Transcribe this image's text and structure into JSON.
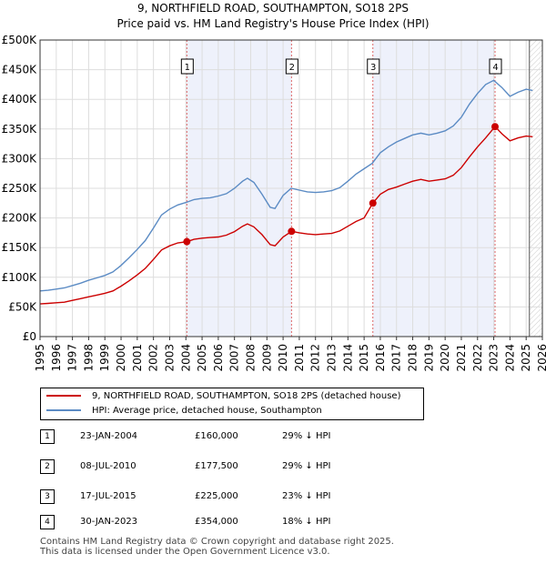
{
  "chart_data": {
    "type": "line",
    "title": "9, NORTHFIELD ROAD, SOUTHAMPTON, SO18 2PS",
    "subtitle": "Price paid vs. HM Land Registry's House Price Index (HPI)",
    "xlim": [
      1995,
      2026
    ],
    "ylim": [
      0,
      500000
    ],
    "x_ticks": [
      1995,
      1996,
      1997,
      1998,
      1999,
      2000,
      2001,
      2002,
      2003,
      2004,
      2005,
      2006,
      2007,
      2008,
      2009,
      2010,
      2011,
      2012,
      2013,
      2014,
      2015,
      2016,
      2017,
      2018,
      2019,
      2020,
      2021,
      2022,
      2023,
      2024,
      2025,
      2026
    ],
    "y_ticks": [
      {
        "value": 0,
        "label": "£0"
      },
      {
        "value": 50000,
        "label": "£50K"
      },
      {
        "value": 100000,
        "label": "£100K"
      },
      {
        "value": 150000,
        "label": "£150K"
      },
      {
        "value": 200000,
        "label": "£200K"
      },
      {
        "value": 250000,
        "label": "£250K"
      },
      {
        "value": 300000,
        "label": "£300K"
      },
      {
        "value": 350000,
        "label": "£350K"
      },
      {
        "value": 400000,
        "label": "£400K"
      },
      {
        "value": 450000,
        "label": "£450K"
      },
      {
        "value": 500000,
        "label": "£500K"
      }
    ],
    "grid": true,
    "forecast_from": 2025.2,
    "shaded_ranges": [
      [
        2004.06,
        2010.52
      ],
      [
        2015.54,
        2023.08
      ]
    ],
    "series": [
      {
        "name": "9, NORTHFIELD ROAD, SOUTHAMPTON, SO18 2PS (detached house)",
        "color": "#cc0000",
        "points": [
          [
            1995,
            55000
          ],
          [
            1995.5,
            56000
          ],
          [
            1996,
            57000
          ],
          [
            1996.5,
            58000
          ],
          [
            1997,
            61000
          ],
          [
            1997.5,
            64000
          ],
          [
            1998,
            67000
          ],
          [
            1998.5,
            70000
          ],
          [
            1999,
            73000
          ],
          [
            1999.5,
            77000
          ],
          [
            2000,
            85000
          ],
          [
            2000.5,
            94000
          ],
          [
            2001,
            104000
          ],
          [
            2001.5,
            115000
          ],
          [
            2002,
            130000
          ],
          [
            2002.5,
            146000
          ],
          [
            2003,
            153000
          ],
          [
            2003.5,
            158000
          ],
          [
            2004.06,
            160000
          ],
          [
            2004.5,
            164000
          ],
          [
            2005,
            166000
          ],
          [
            2005.5,
            167000
          ],
          [
            2006,
            168000
          ],
          [
            2006.5,
            171000
          ],
          [
            2007,
            177000
          ],
          [
            2007.5,
            186000
          ],
          [
            2007.8,
            190000
          ],
          [
            2008.2,
            185000
          ],
          [
            2008.7,
            172000
          ],
          [
            2009.2,
            155000
          ],
          [
            2009.5,
            153000
          ],
          [
            2010,
            168000
          ],
          [
            2010.52,
            177500
          ],
          [
            2011,
            175000
          ],
          [
            2011.5,
            173000
          ],
          [
            2012,
            172000
          ],
          [
            2012.5,
            173000
          ],
          [
            2013,
            174000
          ],
          [
            2013.5,
            178000
          ],
          [
            2014,
            186000
          ],
          [
            2014.5,
            194000
          ],
          [
            2015,
            200000
          ],
          [
            2015.54,
            225000
          ],
          [
            2016,
            240000
          ],
          [
            2016.5,
            248000
          ],
          [
            2017,
            252000
          ],
          [
            2017.5,
            257000
          ],
          [
            2018,
            262000
          ],
          [
            2018.5,
            265000
          ],
          [
            2019,
            262000
          ],
          [
            2019.5,
            264000
          ],
          [
            2020,
            266000
          ],
          [
            2020.5,
            272000
          ],
          [
            2021,
            285000
          ],
          [
            2021.5,
            303000
          ],
          [
            2022,
            320000
          ],
          [
            2022.5,
            335000
          ],
          [
            2023.08,
            354000
          ],
          [
            2023.5,
            342000
          ],
          [
            2024,
            330000
          ],
          [
            2024.5,
            335000
          ],
          [
            2025,
            338000
          ],
          [
            2025.4,
            337000
          ]
        ]
      },
      {
        "name": "HPI: Average price, detached house, Southampton",
        "color": "#5b8bc4",
        "points": [
          [
            1995,
            77000
          ],
          [
            1995.5,
            78000
          ],
          [
            1996,
            80000
          ],
          [
            1996.5,
            82000
          ],
          [
            1997,
            86000
          ],
          [
            1997.5,
            90000
          ],
          [
            1998,
            95000
          ],
          [
            1998.5,
            99000
          ],
          [
            1999,
            103000
          ],
          [
            1999.5,
            109000
          ],
          [
            2000,
            120000
          ],
          [
            2000.5,
            133000
          ],
          [
            2001,
            147000
          ],
          [
            2001.5,
            162000
          ],
          [
            2002,
            183000
          ],
          [
            2002.5,
            205000
          ],
          [
            2003,
            215000
          ],
          [
            2003.5,
            222000
          ],
          [
            2004,
            226000
          ],
          [
            2004.5,
            231000
          ],
          [
            2005,
            233000
          ],
          [
            2005.5,
            234000
          ],
          [
            2006,
            237000
          ],
          [
            2006.5,
            241000
          ],
          [
            2007,
            250000
          ],
          [
            2007.5,
            262000
          ],
          [
            2007.8,
            267000
          ],
          [
            2008.2,
            260000
          ],
          [
            2008.7,
            240000
          ],
          [
            2009.2,
            218000
          ],
          [
            2009.5,
            216000
          ],
          [
            2010,
            238000
          ],
          [
            2010.5,
            250000
          ],
          [
            2011,
            247000
          ],
          [
            2011.5,
            244000
          ],
          [
            2012,
            243000
          ],
          [
            2012.5,
            244000
          ],
          [
            2013,
            246000
          ],
          [
            2013.5,
            251000
          ],
          [
            2014,
            262000
          ],
          [
            2014.5,
            274000
          ],
          [
            2015,
            283000
          ],
          [
            2015.5,
            292000
          ],
          [
            2016,
            310000
          ],
          [
            2016.5,
            320000
          ],
          [
            2017,
            328000
          ],
          [
            2017.5,
            334000
          ],
          [
            2018,
            340000
          ],
          [
            2018.5,
            343000
          ],
          [
            2019,
            340000
          ],
          [
            2019.5,
            343000
          ],
          [
            2020,
            347000
          ],
          [
            2020.5,
            355000
          ],
          [
            2021,
            370000
          ],
          [
            2021.5,
            392000
          ],
          [
            2022,
            410000
          ],
          [
            2022.5,
            425000
          ],
          [
            2023,
            432000
          ],
          [
            2023.5,
            420000
          ],
          [
            2024,
            405000
          ],
          [
            2024.5,
            412000
          ],
          [
            2025,
            417000
          ],
          [
            2025.4,
            415000
          ]
        ]
      }
    ],
    "sales": [
      {
        "id": "1",
        "x": 2004.06,
        "price": 160000
      },
      {
        "id": "2",
        "x": 2010.52,
        "price": 177500
      },
      {
        "id": "3",
        "x": 2015.54,
        "price": 225000
      },
      {
        "id": "4",
        "x": 2023.08,
        "price": 354000
      }
    ]
  },
  "legend": {
    "property_label": "9, NORTHFIELD ROAD, SOUTHAMPTON, SO18 2PS (detached house)",
    "hpi_label": "HPI: Average price, detached house, Southampton"
  },
  "sales_table": [
    {
      "num": "1",
      "date": "23-JAN-2004",
      "price": "£160,000",
      "hpi": "29% ↓ HPI"
    },
    {
      "num": "2",
      "date": "08-JUL-2010",
      "price": "£177,500",
      "hpi": "29% ↓ HPI"
    },
    {
      "num": "3",
      "date": "17-JUL-2015",
      "price": "£225,000",
      "hpi": "23% ↓ HPI"
    },
    {
      "num": "4",
      "date": "30-JAN-2023",
      "price": "£354,000",
      "hpi": "18% ↓ HPI"
    }
  ],
  "footer": {
    "line1": "Contains HM Land Registry data © Crown copyright and database right 2025.",
    "line2": "This data is licensed under the Open Government Licence v3.0."
  }
}
